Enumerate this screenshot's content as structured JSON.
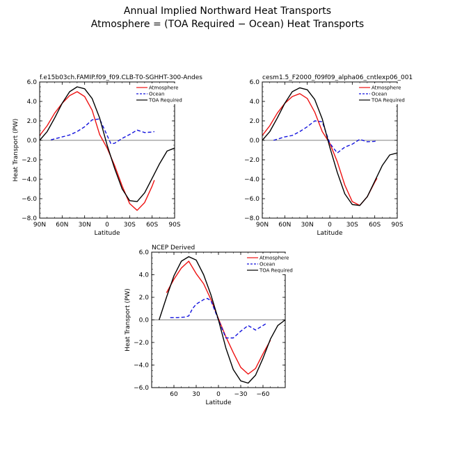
{
  "page": {
    "title_line1": "Annual Implied Northward Heat Transports",
    "title_line2": "Atmosphere = (TOA Required − Ocean) Heat Transports"
  },
  "colors": {
    "atmosphere": "#ee1111",
    "ocean": "#1111dd",
    "toa": "#000000"
  },
  "chart_data": [
    {
      "type": "line",
      "title": "f.e15b03ch.FAMIP.f09_f09.CLB-T0-SGHHT-300-Andes",
      "xlabel": "Latitude",
      "ylabel": "Heat Transport (PW)",
      "xlim": [
        90,
        -90
      ],
      "ylim": [
        -8,
        6
      ],
      "xticks": [
        90,
        60,
        30,
        0,
        -30,
        -60,
        -90
      ],
      "xtick_labels": [
        "90N",
        "60N",
        "30N",
        "0",
        "30S",
        "60S",
        "90S"
      ],
      "yticks": [
        6,
        4,
        2,
        0,
        -2,
        -4,
        -6,
        -8
      ],
      "ytick_labels": [
        "6.0",
        "4.0",
        "2.0",
        "0.0",
        "−2.0",
        "−4.0",
        "−6.0",
        "−8.0"
      ],
      "legend": "top-right",
      "series": [
        {
          "name": "Atmosphere",
          "x": [
            90,
            80,
            70,
            60,
            50,
            40,
            30,
            20,
            10,
            0,
            -10,
            -20,
            -30,
            -40,
            -50,
            -60,
            -63
          ],
          "y": [
            0.5,
            1.5,
            2.8,
            3.8,
            4.6,
            5.0,
            4.5,
            3.1,
            0.6,
            -0.8,
            -2.6,
            -4.7,
            -6.5,
            -7.2,
            -6.4,
            -4.7,
            -4.1
          ]
        },
        {
          "name": "Ocean",
          "x": [
            75,
            60,
            50,
            40,
            30,
            20,
            10,
            0,
            -5,
            -10,
            -20,
            -30,
            -40,
            -50,
            -60,
            -63
          ],
          "y": [
            0.05,
            0.35,
            0.55,
            0.9,
            1.4,
            2.1,
            2.2,
            0.5,
            -0.35,
            -0.3,
            0.2,
            0.6,
            1.05,
            0.8,
            0.85,
            0.9
          ]
        },
        {
          "name": "TOA Required",
          "x": [
            90,
            80,
            70,
            60,
            50,
            40,
            30,
            20,
            10,
            0,
            -10,
            -20,
            -30,
            -40,
            -50,
            -60,
            -70,
            -80,
            -90
          ],
          "y": [
            0.0,
            0.9,
            2.3,
            3.8,
            5.0,
            5.5,
            5.3,
            4.3,
            2.3,
            -0.5,
            -2.9,
            -5.0,
            -6.2,
            -6.3,
            -5.4,
            -3.9,
            -2.4,
            -1.1,
            -0.8
          ]
        }
      ]
    },
    {
      "type": "line",
      "title": "cesm1.5_F2000_f09f09_alpha06_cntlexp06_001",
      "xlabel": "Latitude",
      "ylabel": "",
      "xlim": [
        90,
        -90
      ],
      "ylim": [
        -8,
        6
      ],
      "xticks": [
        90,
        60,
        30,
        0,
        -30,
        -60,
        -90
      ],
      "xtick_labels": [
        "90N",
        "60N",
        "30N",
        "0",
        "30S",
        "60S",
        "90S"
      ],
      "yticks": [
        6,
        4,
        2,
        0,
        -2,
        -4,
        -6,
        -8
      ],
      "ytick_labels": [
        "6.0",
        "4.0",
        "2.0",
        "0.0",
        "−2.0",
        "−4.0",
        "−6.0",
        "−8.0"
      ],
      "legend": "top-right",
      "series": [
        {
          "name": "Atmosphere",
          "x": [
            90,
            80,
            70,
            60,
            50,
            40,
            30,
            20,
            10,
            0,
            -10,
            -20,
            -30,
            -40,
            -50,
            -60,
            -63
          ],
          "y": [
            0.5,
            1.5,
            2.8,
            3.8,
            4.5,
            4.8,
            4.3,
            2.9,
            0.9,
            -0.3,
            -2.2,
            -4.6,
            -6.3,
            -6.7,
            -5.8,
            -4.3,
            -3.9
          ]
        },
        {
          "name": "Ocean",
          "x": [
            75,
            60,
            50,
            40,
            30,
            20,
            10,
            0,
            -10,
            -20,
            -30,
            -40,
            -50,
            -60,
            -63
          ],
          "y": [
            0.0,
            0.35,
            0.5,
            0.9,
            1.4,
            2.0,
            1.9,
            -0.3,
            -1.3,
            -0.7,
            -0.4,
            0.1,
            -0.15,
            -0.1,
            0.0
          ]
        },
        {
          "name": "TOA Required",
          "x": [
            90,
            80,
            70,
            60,
            50,
            40,
            30,
            20,
            10,
            0,
            -10,
            -20,
            -30,
            -40,
            -50,
            -60,
            -70,
            -80,
            -90
          ],
          "y": [
            0.0,
            0.9,
            2.3,
            3.8,
            5.0,
            5.4,
            5.2,
            4.2,
            2.2,
            -0.7,
            -3.3,
            -5.5,
            -6.6,
            -6.7,
            -5.8,
            -4.2,
            -2.6,
            -1.5,
            -1.3
          ]
        }
      ]
    },
    {
      "type": "line",
      "title": "NCEP Derived",
      "xlabel": "Latitude",
      "ylabel": "Heat Transport (PW)",
      "xlim": [
        90,
        -90
      ],
      "ylim": [
        -6,
        6
      ],
      "xticks": [
        60,
        30,
        0,
        -30,
        -60
      ],
      "xtick_labels": [
        "60",
        "30",
        "0",
        "−30",
        "−60"
      ],
      "yticks": [
        6,
        4,
        2,
        0,
        -2,
        -4,
        -6
      ],
      "ytick_labels": [
        "6.0",
        "4.0",
        "2.0",
        "0.0",
        "−2.0",
        "−4.0",
        "−6.0"
      ],
      "legend": "top-right",
      "series": [
        {
          "name": "Atmosphere",
          "x": [
            70,
            60,
            50,
            40,
            30,
            20,
            10,
            0,
            -10,
            -20,
            -30,
            -40,
            -50,
            -60,
            -70
          ],
          "y": [
            2.4,
            3.6,
            4.6,
            5.2,
            4.1,
            3.2,
            1.8,
            0.1,
            -1.5,
            -2.9,
            -4.2,
            -4.8,
            -4.3,
            -3.0,
            -1.8
          ]
        },
        {
          "name": "Ocean",
          "x": [
            65,
            55,
            45,
            40,
            35,
            30,
            20,
            15,
            10,
            0,
            -10,
            -20,
            -30,
            -40,
            -50,
            -60,
            -65
          ],
          "y": [
            0.2,
            0.2,
            0.25,
            0.35,
            1.0,
            1.4,
            1.8,
            1.9,
            1.7,
            0.0,
            -1.6,
            -1.6,
            -1.0,
            -0.5,
            -0.9,
            -0.5,
            -0.3
          ]
        },
        {
          "name": "TOA Required",
          "x": [
            80,
            70,
            60,
            50,
            40,
            30,
            20,
            10,
            0,
            -10,
            -20,
            -30,
            -40,
            -50,
            -60,
            -70,
            -80,
            -90
          ],
          "y": [
            0.0,
            2.0,
            3.9,
            5.2,
            5.6,
            5.3,
            4.0,
            2.2,
            0.0,
            -2.5,
            -4.4,
            -5.4,
            -5.6,
            -4.9,
            -3.4,
            -1.7,
            -0.5,
            0.0
          ]
        }
      ]
    }
  ]
}
